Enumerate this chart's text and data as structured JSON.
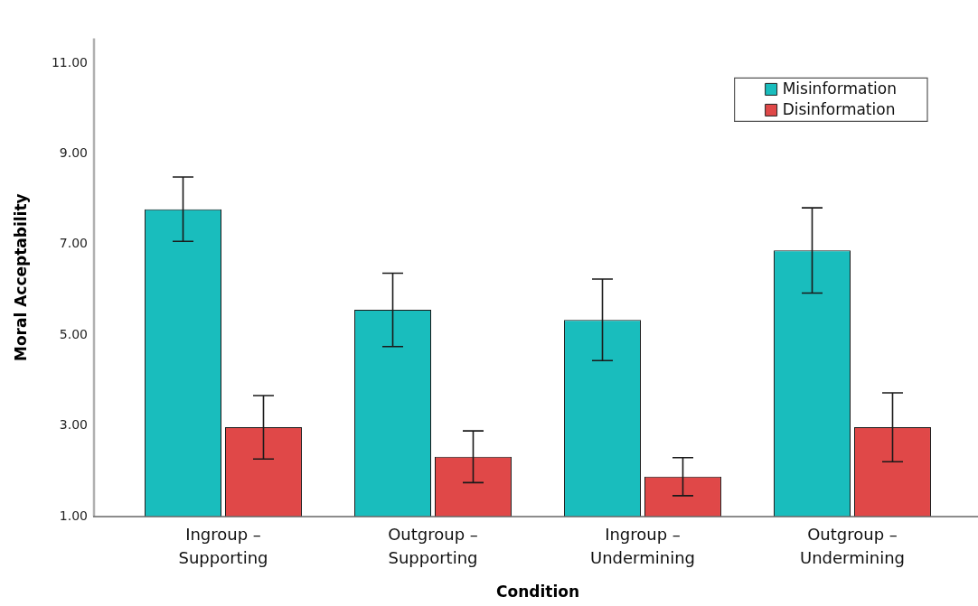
{
  "chart_data": {
    "type": "bar",
    "xlabel": "Condition",
    "ylabel": "Moral Acceptability",
    "categories": [
      "Ingroup – Supporting",
      "Outgroup – Supporting",
      "Ingroup – Undermining",
      "Outgroup – Undermining"
    ],
    "series": [
      {
        "name": "Misinformation",
        "color": "#19bdbd",
        "values": [
          7.78,
          5.56,
          5.34,
          6.87
        ],
        "errors": [
          0.71,
          0.81,
          0.9,
          0.94
        ]
      },
      {
        "name": "Disinformation",
        "color": "#e04848",
        "values": [
          2.97,
          2.32,
          1.88,
          2.97
        ],
        "errors": [
          0.7,
          0.57,
          0.42,
          0.76
        ]
      }
    ],
    "ylim": [
      1,
      11.55
    ],
    "yticks": [
      {
        "value": 1,
        "label": "1.00"
      },
      {
        "value": 3,
        "label": "3.00"
      },
      {
        "value": 5,
        "label": "5.00"
      },
      {
        "value": 7,
        "label": "7.00"
      },
      {
        "value": 9,
        "label": "9.00"
      },
      {
        "value": 11,
        "label": "11.00"
      }
    ],
    "legend": "top right"
  }
}
